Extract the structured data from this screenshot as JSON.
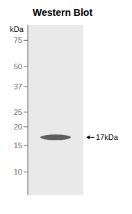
{
  "chart_data": {
    "type": "scatter",
    "title": "Western Blot",
    "ylabel": "kDa",
    "categories": [
      null
    ],
    "values": [
      17
    ],
    "color": "#4a4a4a",
    "log": "y",
    "ylim": [
      7,
      95
    ],
    "yticks": [
      75,
      50,
      37,
      25,
      20,
      15,
      10
    ],
    "grid": false,
    "tick_labels": "y",
    "annotations": [
      {
        "text": "17kDa",
        "y": 17
      }
    ]
  }
}
